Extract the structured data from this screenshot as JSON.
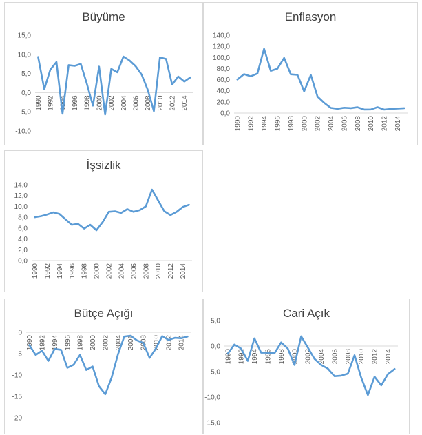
{
  "chart_data": [
    {
      "id": "buyume",
      "type": "line",
      "title": "Büyüme",
      "series": [
        {
          "name": "Büyüme",
          "values": [
            9.3,
            0.9,
            6.0,
            8.0,
            -5.5,
            7.2,
            7.0,
            7.5,
            2.3,
            -3.4,
            6.8,
            -5.7,
            6.2,
            5.3,
            9.4,
            8.4,
            6.9,
            4.7,
            0.7,
            -4.8,
            9.2,
            8.8,
            2.1,
            4.2,
            2.9,
            4.0
          ]
        }
      ],
      "x": [
        1990,
        1991,
        1992,
        1993,
        1994,
        1995,
        1996,
        1997,
        1998,
        1999,
        2000,
        2001,
        2002,
        2003,
        2004,
        2005,
        2006,
        2007,
        2008,
        2009,
        2010,
        2011,
        2012,
        2013,
        2014,
        2015
      ],
      "xticks": [
        "1990",
        "1992",
        "1994",
        "1996",
        "1998",
        "2000",
        "2002",
        "2004",
        "2006",
        "2008",
        "2010",
        "2012",
        "2014"
      ],
      "yticks": [
        "15,0",
        "10,0",
        "5,0",
        "0,0",
        "-5,0",
        "-10,0"
      ],
      "ytick_values": [
        15,
        10,
        5,
        0,
        -5,
        -10
      ],
      "ylim": [
        -10,
        15
      ],
      "color": "#5b9bd5"
    },
    {
      "id": "enflasyon",
      "type": "line",
      "title": "Enflasyon",
      "series": [
        {
          "name": "Enflasyon",
          "values": [
            60.3,
            70.0,
            66.0,
            71.1,
            115.6,
            76.0,
            79.8,
            99.1,
            69.7,
            68.8,
            39.0,
            68.5,
            29.7,
            18.4,
            9.3,
            7.7,
            9.6,
            8.8,
            10.4,
            6.3,
            6.4,
            10.5,
            6.2,
            7.4,
            8.2,
            8.8
          ]
        }
      ],
      "x": [
        1990,
        1991,
        1992,
        1993,
        1994,
        1995,
        1996,
        1997,
        1998,
        1999,
        2000,
        2001,
        2002,
        2003,
        2004,
        2005,
        2006,
        2007,
        2008,
        2009,
        2010,
        2011,
        2012,
        2013,
        2014,
        2015
      ],
      "xticks": [
        "1990",
        "1992",
        "1994",
        "1996",
        "1998",
        "2000",
        "2002",
        "2004",
        "2006",
        "2008",
        "2010",
        "2012",
        "2014"
      ],
      "yticks": [
        "140,0",
        "120,0",
        "100,0",
        "80,0",
        "60,0",
        "40,0",
        "20,0",
        "0,0"
      ],
      "ytick_values": [
        140,
        120,
        100,
        80,
        60,
        40,
        20,
        0
      ],
      "ylim": [
        0,
        140
      ],
      "color": "#5b9bd5"
    },
    {
      "id": "issizlik",
      "type": "line",
      "title": "İşsizlik",
      "series": [
        {
          "name": "İşsizlik",
          "values": [
            8.0,
            8.2,
            8.5,
            8.9,
            8.6,
            7.6,
            6.6,
            6.8,
            5.9,
            6.6,
            5.6,
            7.1,
            9.0,
            9.1,
            8.8,
            9.5,
            9.0,
            9.3,
            10.0,
            13.1,
            11.1,
            9.1,
            8.4,
            9.0,
            9.9,
            10.3
          ]
        }
      ],
      "x": [
        1990,
        1991,
        1992,
        1993,
        1994,
        1995,
        1996,
        1997,
        1998,
        1999,
        2000,
        2001,
        2002,
        2003,
        2004,
        2005,
        2006,
        2007,
        2008,
        2009,
        2010,
        2011,
        2012,
        2013,
        2014,
        2015
      ],
      "xticks": [
        "1990",
        "1992",
        "1994",
        "1996",
        "1998",
        "2000",
        "2002",
        "2004",
        "2006",
        "2008",
        "2010",
        "2012",
        "2014"
      ],
      "yticks": [
        "14,0",
        "12,0",
        "10,0",
        "8,0",
        "6,0",
        "4,0",
        "2,0",
        "0,0"
      ],
      "ytick_values": [
        14,
        12,
        10,
        8,
        6,
        4,
        2,
        0
      ],
      "ylim": [
        0,
        14
      ],
      "color": "#5b9bd5"
    },
    {
      "id": "butce",
      "type": "line",
      "title": "Bütçe Açığı",
      "series": [
        {
          "name": "Bütçe Açığı",
          "values": [
            -3.0,
            -5.3,
            -4.3,
            -6.7,
            -3.9,
            -4.1,
            -8.3,
            -7.6,
            -5.3,
            -8.8,
            -8.0,
            -12.6,
            -14.5,
            -10.6,
            -5.2,
            -1.0,
            -0.8,
            -1.9,
            -2.5,
            -6.0,
            -3.8,
            -0.9,
            -1.8,
            -1.3,
            -1.4,
            -1.0
          ]
        }
      ],
      "x": [
        1990,
        1991,
        1992,
        1993,
        1994,
        1995,
        1996,
        1997,
        1998,
        1999,
        2000,
        2001,
        2002,
        2003,
        2004,
        2005,
        2006,
        2007,
        2008,
        2009,
        2010,
        2011,
        2012,
        2013,
        2014,
        2015
      ],
      "xticks": [
        "1990",
        "1992",
        "1994",
        "1996",
        "1998",
        "2000",
        "2002",
        "2004",
        "2006",
        "2008",
        "2010",
        "2012",
        "2014"
      ],
      "yticks": [
        "0",
        "-5",
        "-10",
        "-15",
        "-20"
      ],
      "ytick_values": [
        0,
        -5,
        -10,
        -15,
        -20
      ],
      "ylim": [
        -20,
        0
      ],
      "color": "#5b9bd5"
    },
    {
      "id": "cari",
      "type": "line",
      "title": "Cari Açık",
      "series": [
        {
          "name": "Cari Açık",
          "values": [
            -1.5,
            0.3,
            -0.5,
            -2.9,
            1.5,
            -1.3,
            -1.3,
            -1.4,
            0.7,
            -0.5,
            -3.7,
            1.9,
            -0.3,
            -2.5,
            -3.7,
            -4.4,
            -5.9,
            -5.8,
            -5.4,
            -1.8,
            -6.2,
            -9.6,
            -6.0,
            -7.7,
            -5.5,
            -4.5
          ]
        }
      ],
      "x": [
        1990,
        1991,
        1992,
        1993,
        1994,
        1995,
        1996,
        1997,
        1998,
        1999,
        2000,
        2001,
        2002,
        2003,
        2004,
        2005,
        2006,
        2007,
        2008,
        2009,
        2010,
        2011,
        2012,
        2013,
        2014,
        2015
      ],
      "xticks": [
        "1990",
        "1992",
        "1994",
        "1996",
        "1998",
        "2000",
        "2002",
        "2004",
        "2006",
        "2008",
        "2010",
        "2012",
        "2014"
      ],
      "yticks": [
        "5,0",
        "0,0",
        "-5,0",
        "-10,0",
        "-15,0"
      ],
      "ytick_values": [
        5,
        0,
        -5,
        -10,
        -15
      ],
      "ylim": [
        -15,
        5
      ],
      "color": "#5b9bd5"
    }
  ]
}
